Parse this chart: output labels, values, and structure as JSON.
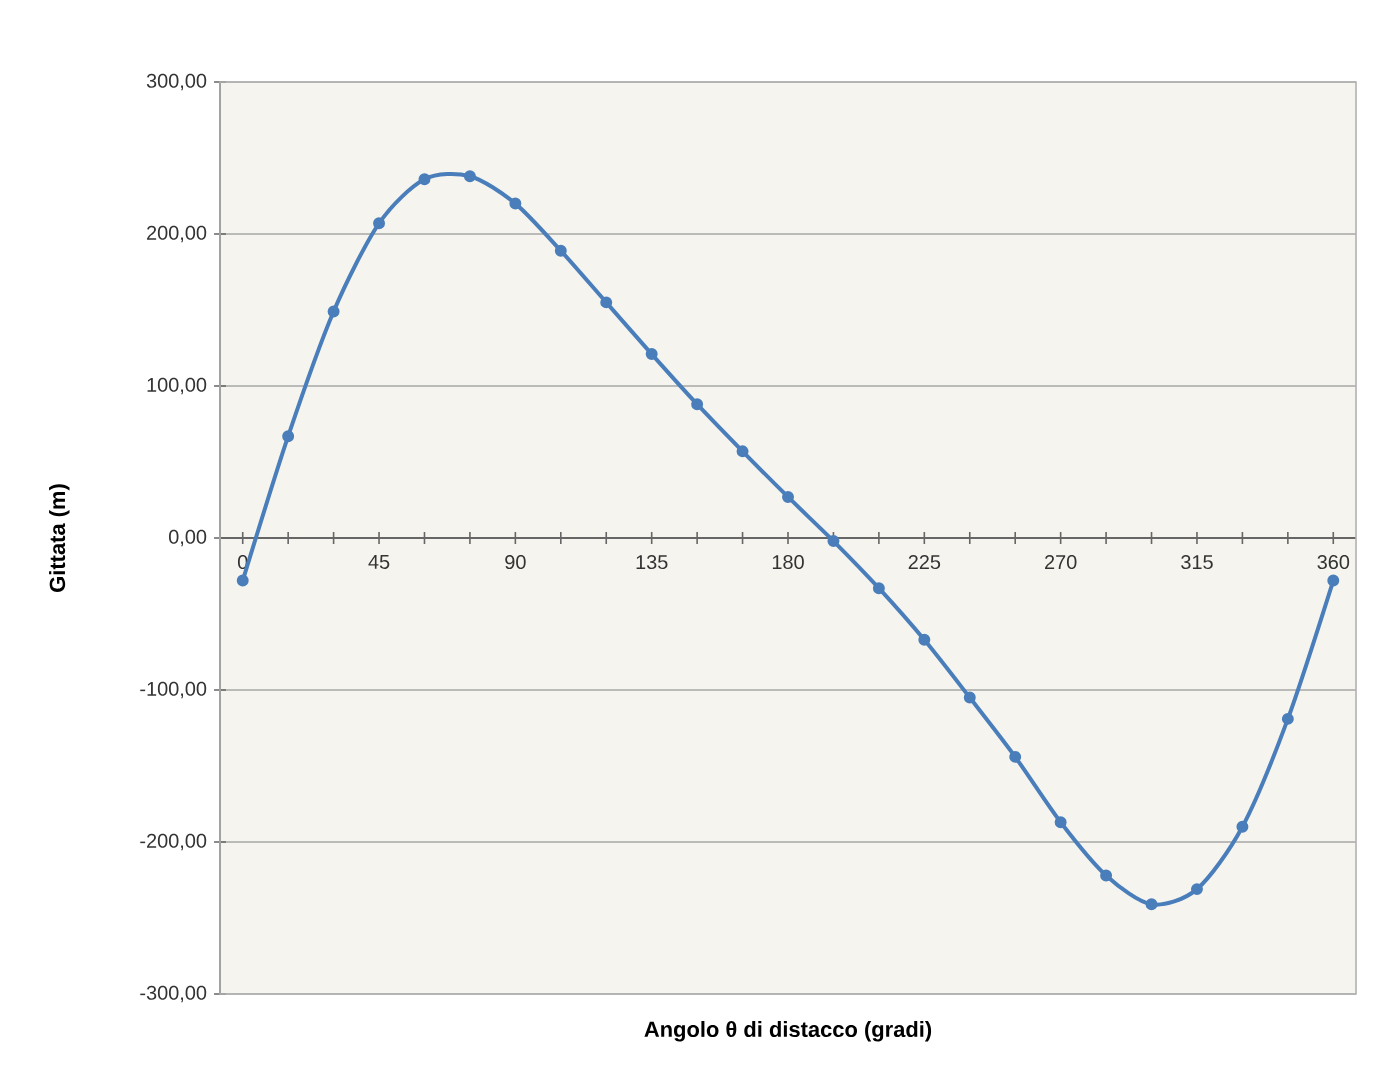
{
  "chart_data": {
    "type": "line",
    "xlabel": "Angolo θ di distacco (gradi)",
    "ylabel": "Gittata (m)",
    "x": [
      0,
      15,
      30,
      45,
      60,
      75,
      90,
      105,
      120,
      135,
      150,
      165,
      180,
      195,
      210,
      225,
      240,
      255,
      270,
      285,
      300,
      315,
      330,
      345,
      360
    ],
    "series": [
      {
        "color": "#4a7ebb",
        "values": [
          -28,
          67,
          149,
          207,
          236,
          238,
          220,
          189,
          155,
          121,
          88,
          57,
          27,
          -2,
          -33,
          -67,
          -105,
          -144,
          -187,
          -222,
          -241,
          -231,
          -190,
          -119,
          -28
        ]
      }
    ],
    "xlim": [
      -7.5,
      367.5
    ],
    "xticks": [
      0,
      {
        "value": 15,
        "label": null
      },
      {
        "value": 30,
        "label": null
      },
      45,
      {
        "value": 60,
        "label": null
      },
      {
        "value": 75,
        "label": null
      },
      90,
      {
        "value": 105,
        "label": null
      },
      {
        "value": 120,
        "label": null
      },
      135,
      {
        "value": 150,
        "label": null
      },
      {
        "value": 165,
        "label": null
      },
      180,
      {
        "value": 195,
        "label": null
      },
      {
        "value": 210,
        "label": null
      },
      225,
      {
        "value": 240,
        "label": null
      },
      {
        "value": 255,
        "label": null
      },
      270,
      {
        "value": 285,
        "label": null
      },
      {
        "value": 300,
        "label": null
      },
      315,
      {
        "value": 330,
        "label": null
      },
      {
        "value": 345,
        "label": null
      },
      360
    ],
    "ylim": [
      -300,
      300
    ],
    "yticks": [
      {
        "value": -300,
        "label": "-300,00"
      },
      {
        "value": -200,
        "label": "-200,00"
      },
      {
        "value": -100,
        "label": "-100,00"
      },
      {
        "value": 0,
        "label": "0,00"
      },
      {
        "value": 100,
        "label": "100,00"
      },
      {
        "value": 200,
        "label": "200,00"
      },
      {
        "value": 300,
        "label": "300,00"
      }
    ],
    "grid": "y",
    "marker": "circle",
    "line_style": "solid"
  }
}
